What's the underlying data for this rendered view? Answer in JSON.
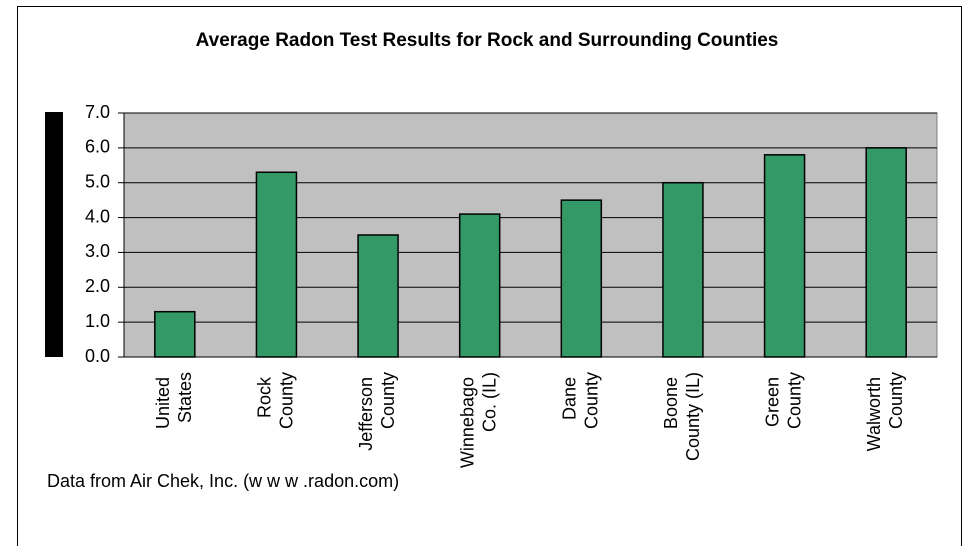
{
  "chart_data": {
    "type": "bar",
    "title": "Average Radon Test Results for Rock and Surrounding Counties",
    "categories": [
      "United States",
      "Rock County",
      "Jefferson County",
      "Winnebago Co. (IL)",
      "Dane County",
      "Boone County (IL)",
      "Green County",
      "Walworth County"
    ],
    "values": [
      1.3,
      5.3,
      3.5,
      4.1,
      4.5,
      5.0,
      5.8,
      6.0
    ],
    "color": "#339966",
    "ylim": [
      0,
      7
    ],
    "yticks": [
      {
        "value": 0,
        "label": "0.0"
      },
      {
        "value": 1,
        "label": "1.0"
      },
      {
        "value": 2,
        "label": "2.0"
      },
      {
        "value": 3,
        "label": "3.0"
      },
      {
        "value": 4,
        "label": "4.0"
      },
      {
        "value": 5,
        "label": "5.0"
      },
      {
        "value": 6,
        "label": "6.0"
      },
      {
        "value": 7,
        "label": "7.0"
      }
    ],
    "grid": true,
    "note": "Data from Air Chek, Inc. (w w w .radon.com)"
  }
}
